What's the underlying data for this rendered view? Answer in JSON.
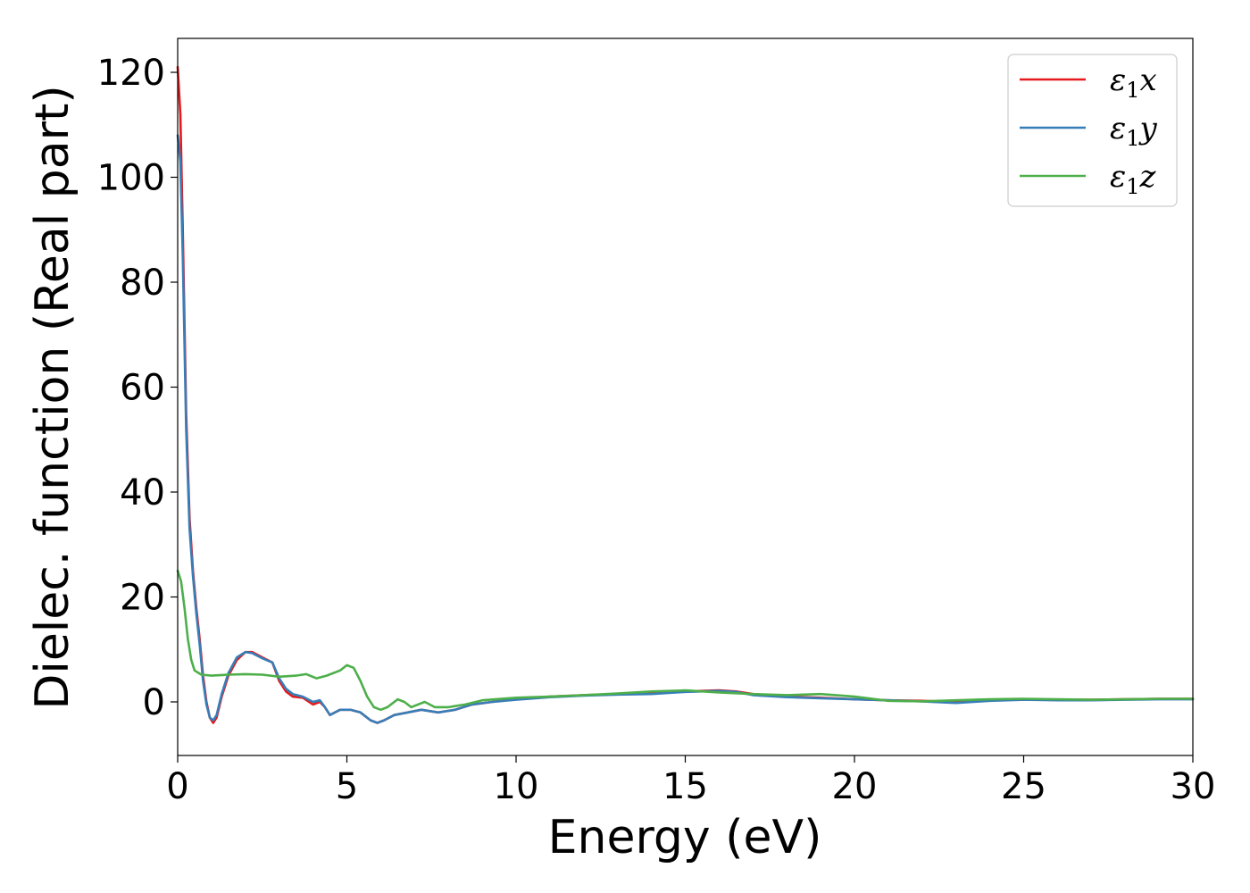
{
  "chart_data": {
    "type": "line",
    "title": "",
    "xlabel": "Energy (eV)",
    "ylabel": "Dielec. function (Real part)",
    "xlim": [
      0,
      30
    ],
    "ylim": [
      -10,
      126
    ],
    "xticks": [
      0,
      5,
      10,
      15,
      20,
      25,
      30
    ],
    "yticks": [
      0,
      20,
      40,
      60,
      80,
      100,
      120
    ],
    "xtick_labels": [
      "0",
      "5",
      "10",
      "15",
      "20",
      "25",
      "30"
    ],
    "ytick_labels": [
      "0",
      "20",
      "40",
      "60",
      "80",
      "100",
      "120"
    ],
    "grid": false,
    "legend_position": "top-right",
    "series": [
      {
        "name": "ε1x",
        "legend_main": "ε",
        "legend_sub": "1",
        "legend_tail": "x",
        "color": "#e41a1c",
        "points": [
          [
            0,
            121
          ],
          [
            0.08,
            112
          ],
          [
            0.15,
            90
          ],
          [
            0.25,
            55
          ],
          [
            0.35,
            35
          ],
          [
            0.45,
            25
          ],
          [
            0.55,
            18
          ],
          [
            0.65,
            12
          ],
          [
            0.75,
            5
          ],
          [
            0.85,
            0
          ],
          [
            0.95,
            -3
          ],
          [
            1.05,
            -4
          ],
          [
            1.15,
            -3
          ],
          [
            1.3,
            1
          ],
          [
            1.5,
            5
          ],
          [
            1.75,
            8
          ],
          [
            2.0,
            9.5
          ],
          [
            2.2,
            9.5
          ],
          [
            2.5,
            8.5
          ],
          [
            2.8,
            7.5
          ],
          [
            3.0,
            4
          ],
          [
            3.2,
            2
          ],
          [
            3.4,
            1
          ],
          [
            3.7,
            0.8
          ],
          [
            4.0,
            -0.5
          ],
          [
            4.2,
            0
          ],
          [
            4.35,
            -1
          ],
          [
            4.5,
            -2.5
          ],
          [
            4.8,
            -1.5
          ],
          [
            5.1,
            -1.5
          ],
          [
            5.4,
            -2
          ],
          [
            5.7,
            -3.5
          ],
          [
            5.9,
            -4
          ],
          [
            6.1,
            -3.5
          ],
          [
            6.4,
            -2.5
          ],
          [
            6.8,
            -2
          ],
          [
            7.2,
            -1.5
          ],
          [
            7.7,
            -2
          ],
          [
            8.2,
            -1.5
          ],
          [
            8.7,
            -0.5
          ],
          [
            9.3,
            0
          ],
          [
            10,
            0.5
          ],
          [
            11,
            1
          ],
          [
            12,
            1.3
          ],
          [
            13,
            1.5
          ],
          [
            14,
            1.6
          ],
          [
            15,
            2
          ],
          [
            16,
            2.2
          ],
          [
            16.5,
            2
          ],
          [
            17,
            1.5
          ],
          [
            18,
            1
          ],
          [
            19,
            0.8
          ],
          [
            20,
            0.5
          ],
          [
            21,
            0.3
          ],
          [
            22,
            0.2
          ],
          [
            23,
            0
          ],
          [
            24,
            0.3
          ],
          [
            25,
            0.5
          ],
          [
            26,
            0.4
          ],
          [
            27,
            0.4
          ],
          [
            28,
            0.5
          ],
          [
            29,
            0.6
          ],
          [
            30,
            0.6
          ]
        ]
      },
      {
        "name": "ε1y",
        "legend_main": "ε",
        "legend_sub": "1",
        "legend_tail": "y",
        "color": "#377eb8",
        "points": [
          [
            0,
            108
          ],
          [
            0.08,
            103
          ],
          [
            0.15,
            85
          ],
          [
            0.25,
            52
          ],
          [
            0.35,
            33
          ],
          [
            0.45,
            24
          ],
          [
            0.55,
            17
          ],
          [
            0.65,
            11
          ],
          [
            0.75,
            4
          ],
          [
            0.85,
            -0.5
          ],
          [
            0.95,
            -3
          ],
          [
            1.05,
            -3.5
          ],
          [
            1.15,
            -2.5
          ],
          [
            1.3,
            1.5
          ],
          [
            1.5,
            5.5
          ],
          [
            1.75,
            8.5
          ],
          [
            2.0,
            9.5
          ],
          [
            2.2,
            9.3
          ],
          [
            2.5,
            8.3
          ],
          [
            2.8,
            7.5
          ],
          [
            3.0,
            4.5
          ],
          [
            3.2,
            2.5
          ],
          [
            3.4,
            1.5
          ],
          [
            3.7,
            1
          ],
          [
            4.0,
            0
          ],
          [
            4.2,
            0.3
          ],
          [
            4.35,
            -1
          ],
          [
            4.5,
            -2.5
          ],
          [
            4.8,
            -1.5
          ],
          [
            5.1,
            -1.5
          ],
          [
            5.4,
            -2
          ],
          [
            5.7,
            -3.5
          ],
          [
            5.9,
            -4
          ],
          [
            6.1,
            -3.5
          ],
          [
            6.4,
            -2.5
          ],
          [
            6.8,
            -2
          ],
          [
            7.2,
            -1.5
          ],
          [
            7.7,
            -2
          ],
          [
            8.2,
            -1.5
          ],
          [
            8.7,
            -0.5
          ],
          [
            9.3,
            0
          ],
          [
            10,
            0.4
          ],
          [
            11,
            0.9
          ],
          [
            12,
            1.2
          ],
          [
            13,
            1.4
          ],
          [
            14,
            1.5
          ],
          [
            15,
            1.9
          ],
          [
            16,
            2.1
          ],
          [
            16.5,
            1.9
          ],
          [
            17,
            1.3
          ],
          [
            18,
            0.9
          ],
          [
            19,
            0.7
          ],
          [
            20,
            0.5
          ],
          [
            21,
            0.3
          ],
          [
            22,
            0.1
          ],
          [
            23,
            -0.2
          ],
          [
            24,
            0.2
          ],
          [
            25,
            0.4
          ],
          [
            26,
            0.3
          ],
          [
            27,
            0.3
          ],
          [
            28,
            0.4
          ],
          [
            29,
            0.5
          ],
          [
            30,
            0.5
          ]
        ]
      },
      {
        "name": "ε1z",
        "legend_main": "ε",
        "legend_sub": "1",
        "legend_tail": "z",
        "color": "#4daf4a",
        "points": [
          [
            0,
            25
          ],
          [
            0.1,
            23
          ],
          [
            0.2,
            18
          ],
          [
            0.3,
            12
          ],
          [
            0.4,
            8
          ],
          [
            0.5,
            6
          ],
          [
            0.7,
            5.2
          ],
          [
            1.0,
            5
          ],
          [
            1.5,
            5.2
          ],
          [
            2.0,
            5.3
          ],
          [
            2.5,
            5.2
          ],
          [
            3.0,
            4.8
          ],
          [
            3.5,
            5
          ],
          [
            3.8,
            5.3
          ],
          [
            4.1,
            4.5
          ],
          [
            4.4,
            5
          ],
          [
            4.8,
            6
          ],
          [
            5.0,
            7
          ],
          [
            5.2,
            6.5
          ],
          [
            5.4,
            4
          ],
          [
            5.6,
            1
          ],
          [
            5.8,
            -1
          ],
          [
            6.0,
            -1.5
          ],
          [
            6.2,
            -1
          ],
          [
            6.5,
            0.5
          ],
          [
            6.7,
            0
          ],
          [
            6.9,
            -1
          ],
          [
            7.1,
            -0.5
          ],
          [
            7.3,
            0
          ],
          [
            7.6,
            -1
          ],
          [
            8.0,
            -1
          ],
          [
            8.5,
            -0.5
          ],
          [
            9.0,
            0.3
          ],
          [
            10,
            0.8
          ],
          [
            11,
            1
          ],
          [
            12,
            1.3
          ],
          [
            13,
            1.6
          ],
          [
            14,
            2
          ],
          [
            15,
            2.2
          ],
          [
            16,
            1.8
          ],
          [
            17,
            1.5
          ],
          [
            18,
            1.3
          ],
          [
            19,
            1.5
          ],
          [
            20,
            1
          ],
          [
            21,
            0.2
          ],
          [
            22,
            0.1
          ],
          [
            23,
            0.3
          ],
          [
            24,
            0.5
          ],
          [
            25,
            0.6
          ],
          [
            26,
            0.5
          ],
          [
            27,
            0.4
          ],
          [
            28,
            0.5
          ],
          [
            29,
            0.6
          ],
          [
            30,
            0.6
          ]
        ]
      }
    ]
  }
}
